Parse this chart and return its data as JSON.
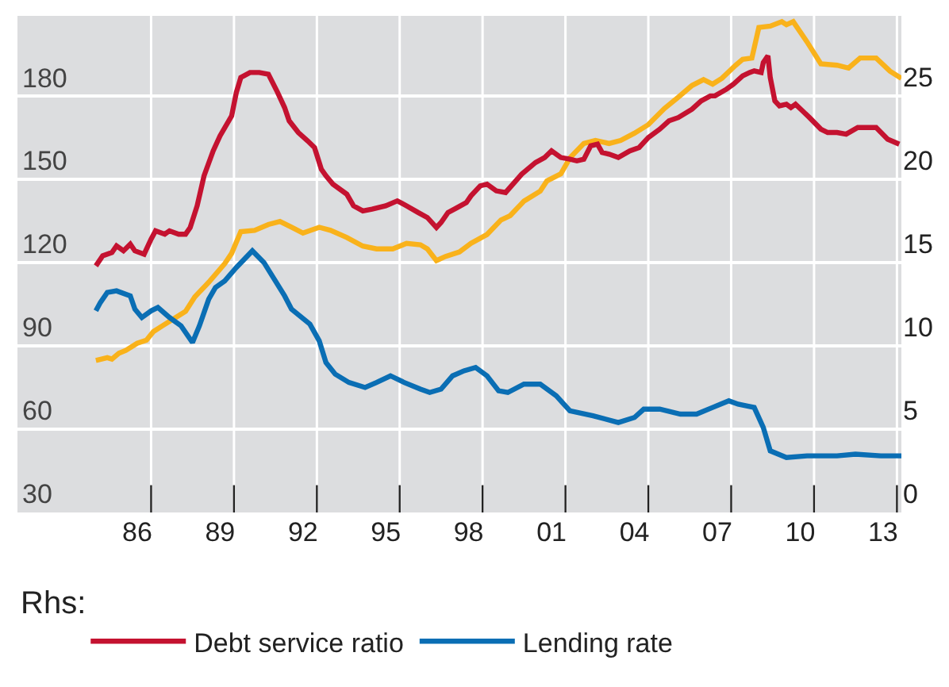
{
  "chart_data": {
    "type": "line",
    "legend": "bottom",
    "legend_title": "Rhs:",
    "grid": true,
    "xlim": [
      "1982-03",
      "2014-03"
    ],
    "xticks": [
      {
        "value": "1986-07",
        "label": "86"
      },
      {
        "value": "1989-07",
        "label": "89"
      },
      {
        "value": "1992-07",
        "label": "92"
      },
      {
        "value": "1995-07",
        "label": "95"
      },
      {
        "value": "1998-07",
        "label": "98"
      },
      {
        "value": "2001-07",
        "label": "01"
      },
      {
        "value": "2004-07",
        "label": "04"
      },
      {
        "value": "2007-07",
        "label": "07"
      },
      {
        "value": "2010-07",
        "label": "10"
      },
      {
        "value": "2013-07",
        "label": "13"
      },
      {
        "value": "1987",
        "label": null
      },
      {
        "value": "1990",
        "label": null
      },
      {
        "value": "1993",
        "label": null
      },
      {
        "value": "1996",
        "label": null
      },
      {
        "value": "1999",
        "label": null
      },
      {
        "value": "2002",
        "label": null
      },
      {
        "value": "2005",
        "label": null
      },
      {
        "value": "2008",
        "label": null
      },
      {
        "value": "2011",
        "label": null
      },
      {
        "value": "2014",
        "label": null
      }
    ],
    "ylim": [
      30,
      209
    ],
    "yticks": [
      30,
      60,
      90,
      120,
      150,
      180
    ],
    "y2lim": [
      0,
      29.8
    ],
    "y2ticks": [
      0,
      5,
      10,
      15,
      20,
      25
    ],
    "series": [
      {
        "color": "#f9b21b",
        "x": [
          "1985-01",
          "1985-06",
          "1985-08",
          "1985-11",
          "1986-02",
          "1986-07",
          "1986-11",
          "1987-02",
          "1987-06",
          "1987-12",
          "1988-04",
          "1988-08",
          "1989-02",
          "1989-09",
          "1989-12",
          "1990-04",
          "1990-10",
          "1991-04",
          "1991-09",
          "1992-02",
          "1992-07",
          "1993-02",
          "1993-07",
          "1994-02",
          "1994-09",
          "1995-03",
          "1995-10",
          "1996-04",
          "1996-10",
          "1997-01",
          "1997-05",
          "1997-09",
          "1998-03",
          "1998-08",
          "1999-03",
          "1999-09",
          "2000-01",
          "2000-07",
          "2001-02",
          "2001-05",
          "2001-11",
          "2002-03",
          "2002-09",
          "2003-02",
          "2003-08",
          "2004-01",
          "2004-07",
          "2005-01",
          "2005-08",
          "2006-02",
          "2006-08",
          "2007-01",
          "2007-05",
          "2007-09",
          "2008-03",
          "2008-06",
          "2008-10",
          "2009-01",
          "2009-06",
          "2009-11",
          "2010-01",
          "2010-04",
          "2010-10",
          "2011-04",
          "2011-11",
          "2012-04",
          "2012-09",
          "2013-04",
          "2013-10",
          "2014-03"
        ],
        "values": [
          84.8,
          85.8,
          85.3,
          87.4,
          88.4,
          91.0,
          92.1,
          95.2,
          97.3,
          100.4,
          102.5,
          107.7,
          113.0,
          119.7,
          123.4,
          131.2,
          131.7,
          133.8,
          134.9,
          132.8,
          130.7,
          132.8,
          131.7,
          129.1,
          126.0,
          125.0,
          125.0,
          127.0,
          126.5,
          125.0,
          120.8,
          122.3,
          123.9,
          127.0,
          130.2,
          135.4,
          137.0,
          142.2,
          145.8,
          149.5,
          152.1,
          157.8,
          163.0,
          164.1,
          163.0,
          164.1,
          166.7,
          169.8,
          175.6,
          179.7,
          183.9,
          186.0,
          184.4,
          186.5,
          191.2,
          193.3,
          193.8,
          204.8,
          205.3,
          206.9,
          205.8,
          206.9,
          199.6,
          191.7,
          191.2,
          190.2,
          193.8,
          193.8,
          189.1,
          186.5
        ]
      },
      {
        "name": "Debt service ratio",
        "color": "#c41230",
        "axis": "y2",
        "x": [
          "1985-01",
          "1985-04",
          "1985-08",
          "1985-10",
          "1986-01",
          "1986-04",
          "1986-06",
          "1986-10",
          "1987-01",
          "1987-03",
          "1987-07",
          "1987-09",
          "1988-01",
          "1988-04",
          "1988-06",
          "1988-09",
          "1988-12",
          "1989-04",
          "1989-07",
          "1989-12",
          "1990-02",
          "1990-04",
          "1990-08",
          "1990-12",
          "1991-04",
          "1991-08",
          "1991-11",
          "1992-01",
          "1992-05",
          "1992-09",
          "1992-12",
          "1993-03",
          "1993-05",
          "1993-08",
          "1994-02",
          "1994-05",
          "1994-09",
          "1995-01",
          "1995-07",
          "1995-12",
          "1996-04",
          "1996-09",
          "1997-01",
          "1997-05",
          "1997-07",
          "1997-10",
          "1998-02",
          "1998-06",
          "1998-08",
          "1998-12",
          "1999-03",
          "1999-07",
          "1999-11",
          "2000-06",
          "2000-12",
          "2001-04",
          "2001-07",
          "2001-11",
          "2002-03",
          "2002-06",
          "2002-09",
          "2002-12",
          "2003-03",
          "2003-05",
          "2003-08",
          "2003-12",
          "2004-05",
          "2004-09",
          "2005-01",
          "2005-06",
          "2005-10",
          "2006-02",
          "2006-08",
          "2006-12",
          "2007-04",
          "2007-06",
          "2007-11",
          "2008-02",
          "2008-06",
          "2008-09",
          "2008-11",
          "2009-02",
          "2009-03",
          "2009-05",
          "2009-06",
          "2009-08",
          "2009-10",
          "2010-01",
          "2010-03",
          "2010-05",
          "2010-08",
          "2010-11",
          "2011-04",
          "2011-07",
          "2011-11",
          "2012-03",
          "2012-08",
          "2013-02",
          "2013-04",
          "2013-09",
          "2014-02"
        ],
        "values": [
          14.8,
          15.4,
          15.6,
          16.0,
          15.7,
          16.1,
          15.7,
          15.5,
          16.4,
          16.9,
          16.7,
          16.9,
          16.7,
          16.7,
          17.1,
          18.4,
          20.2,
          21.7,
          22.6,
          23.8,
          25.2,
          26.1,
          26.4,
          26.4,
          26.3,
          25.2,
          24.3,
          23.5,
          22.8,
          22.3,
          21.9,
          20.6,
          20.2,
          19.7,
          19.1,
          18.4,
          18.1,
          18.2,
          18.4,
          18.7,
          18.4,
          18.0,
          17.7,
          17.1,
          17.4,
          18.0,
          18.3,
          18.6,
          19.0,
          19.6,
          19.7,
          19.3,
          19.2,
          20.3,
          21.0,
          21.3,
          21.7,
          21.3,
          21.2,
          21.1,
          21.2,
          22.0,
          22.1,
          21.6,
          21.5,
          21.3,
          21.7,
          21.9,
          22.5,
          23.0,
          23.5,
          23.7,
          24.2,
          24.7,
          25.0,
          25.0,
          25.4,
          25.7,
          26.2,
          26.4,
          26.5,
          26.4,
          27.0,
          27.4,
          26.1,
          24.7,
          24.4,
          24.5,
          24.3,
          24.5,
          24.1,
          23.7,
          23.0,
          22.8,
          22.8,
          22.7,
          23.1,
          23.1,
          23.1,
          22.4,
          22.1
        ]
      },
      {
        "name": "Lending rate",
        "color": "#0a6eb4",
        "axis": "y2",
        "x": [
          "1985-01",
          "1985-03",
          "1985-06",
          "1985-10",
          "1986-04",
          "1986-06",
          "1986-09",
          "1987-01",
          "1987-04",
          "1987-09",
          "1988-02",
          "1988-07",
          "1988-10",
          "1989-02",
          "1989-05",
          "1989-09",
          "1990-02",
          "1990-09",
          "1991-02",
          "1991-11",
          "1992-02",
          "1992-10",
          "1993-02",
          "1993-05",
          "1993-09",
          "1994-03",
          "1994-10",
          "1995-03",
          "1995-09",
          "1996-03",
          "1996-10",
          "1997-02",
          "1997-07",
          "1997-12",
          "1998-05",
          "1998-10",
          "1999-03",
          "1999-08",
          "1999-12",
          "2000-07",
          "2001-02",
          "2001-09",
          "2002-03",
          "2003-01",
          "2003-12",
          "2004-07",
          "2004-11",
          "2005-06",
          "2006-03",
          "2006-10",
          "2007-05",
          "2007-12",
          "2008-04",
          "2008-11",
          "2009-03",
          "2009-06",
          "2010-01",
          "2010-10",
          "2011-11",
          "2012-07",
          "2013-06",
          "2014-03"
        ],
        "values": [
          12.1,
          12.6,
          13.2,
          13.3,
          13.0,
          12.2,
          11.7,
          12.1,
          12.3,
          11.7,
          11.2,
          10.2,
          11.2,
          12.8,
          13.5,
          13.9,
          14.7,
          15.7,
          15.0,
          13.0,
          12.2,
          11.3,
          10.3,
          9.0,
          8.3,
          7.8,
          7.5,
          7.8,
          8.2,
          7.8,
          7.4,
          7.2,
          7.4,
          8.2,
          8.5,
          8.7,
          8.2,
          7.3,
          7.2,
          7.7,
          7.7,
          7.0,
          6.1,
          5.8,
          5.4,
          5.7,
          6.2,
          6.2,
          5.9,
          5.9,
          6.3,
          6.7,
          6.5,
          6.3,
          5.1,
          3.7,
          3.3,
          3.4,
          3.4,
          3.5,
          3.4,
          3.4
        ]
      }
    ]
  }
}
